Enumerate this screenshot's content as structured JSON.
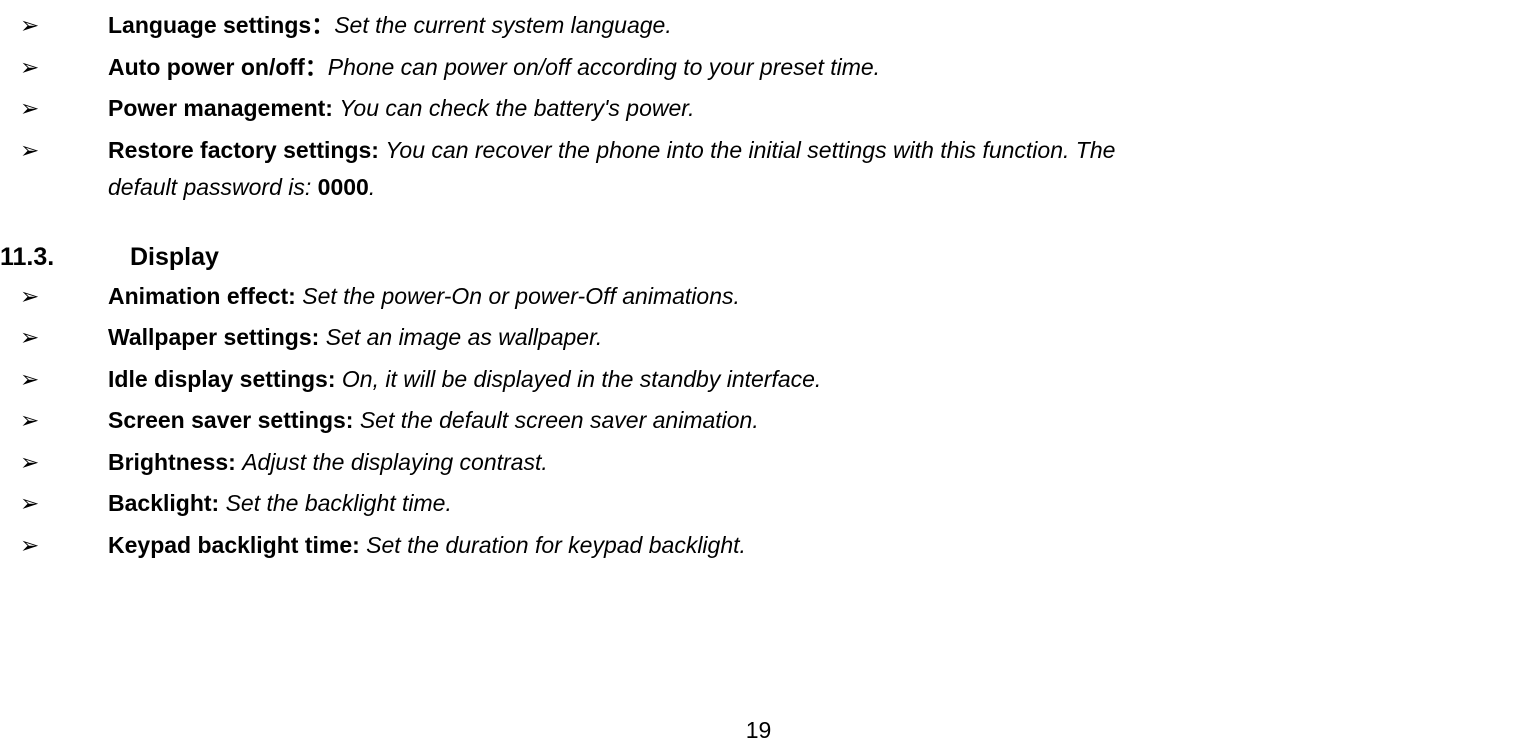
{
  "settings_items": [
    {
      "title": "Language settings：",
      "desc": "Set the current system language."
    },
    {
      "title": "Auto power on/off：",
      "desc": "Phone can power on/off according to your preset time."
    },
    {
      "title": "Power management: ",
      "desc": "You can check the battery's power."
    },
    {
      "title": "Restore factory settings: ",
      "desc": "You can recover the phone into the initial settings with this function. The "
    }
  ],
  "restore_continuation_prefix": "default password is: ",
  "restore_password": "0000",
  "restore_continuation_suffix": ".",
  "section": {
    "number": "11.3.",
    "title": "Display"
  },
  "display_items": [
    {
      "title": "Animation effect: ",
      "desc": "Set the power-On or power-Off animations."
    },
    {
      "title": "Wallpaper settings: ",
      "desc": "Set an image as wallpaper."
    },
    {
      "title": "Idle display settings: ",
      "desc": "On, it will be displayed in the standby interface."
    },
    {
      "title": "Screen saver settings: ",
      "desc": "Set the default screen saver animation."
    },
    {
      "title": "Brightness: ",
      "desc": "Adjust the displaying contrast."
    },
    {
      "title": "Backlight: ",
      "desc": "Set the backlight time."
    },
    {
      "title": "Keypad backlight time: ",
      "desc": "Set the duration for keypad backlight."
    }
  ],
  "bullet_char": "➢",
  "page_number": "19",
  "styles": {
    "background_color": "#ffffff",
    "text_color": "#000000",
    "font_size_body": 23,
    "font_size_heading": 25,
    "font_family_body": "Verdana",
    "line_height": 1.5
  }
}
